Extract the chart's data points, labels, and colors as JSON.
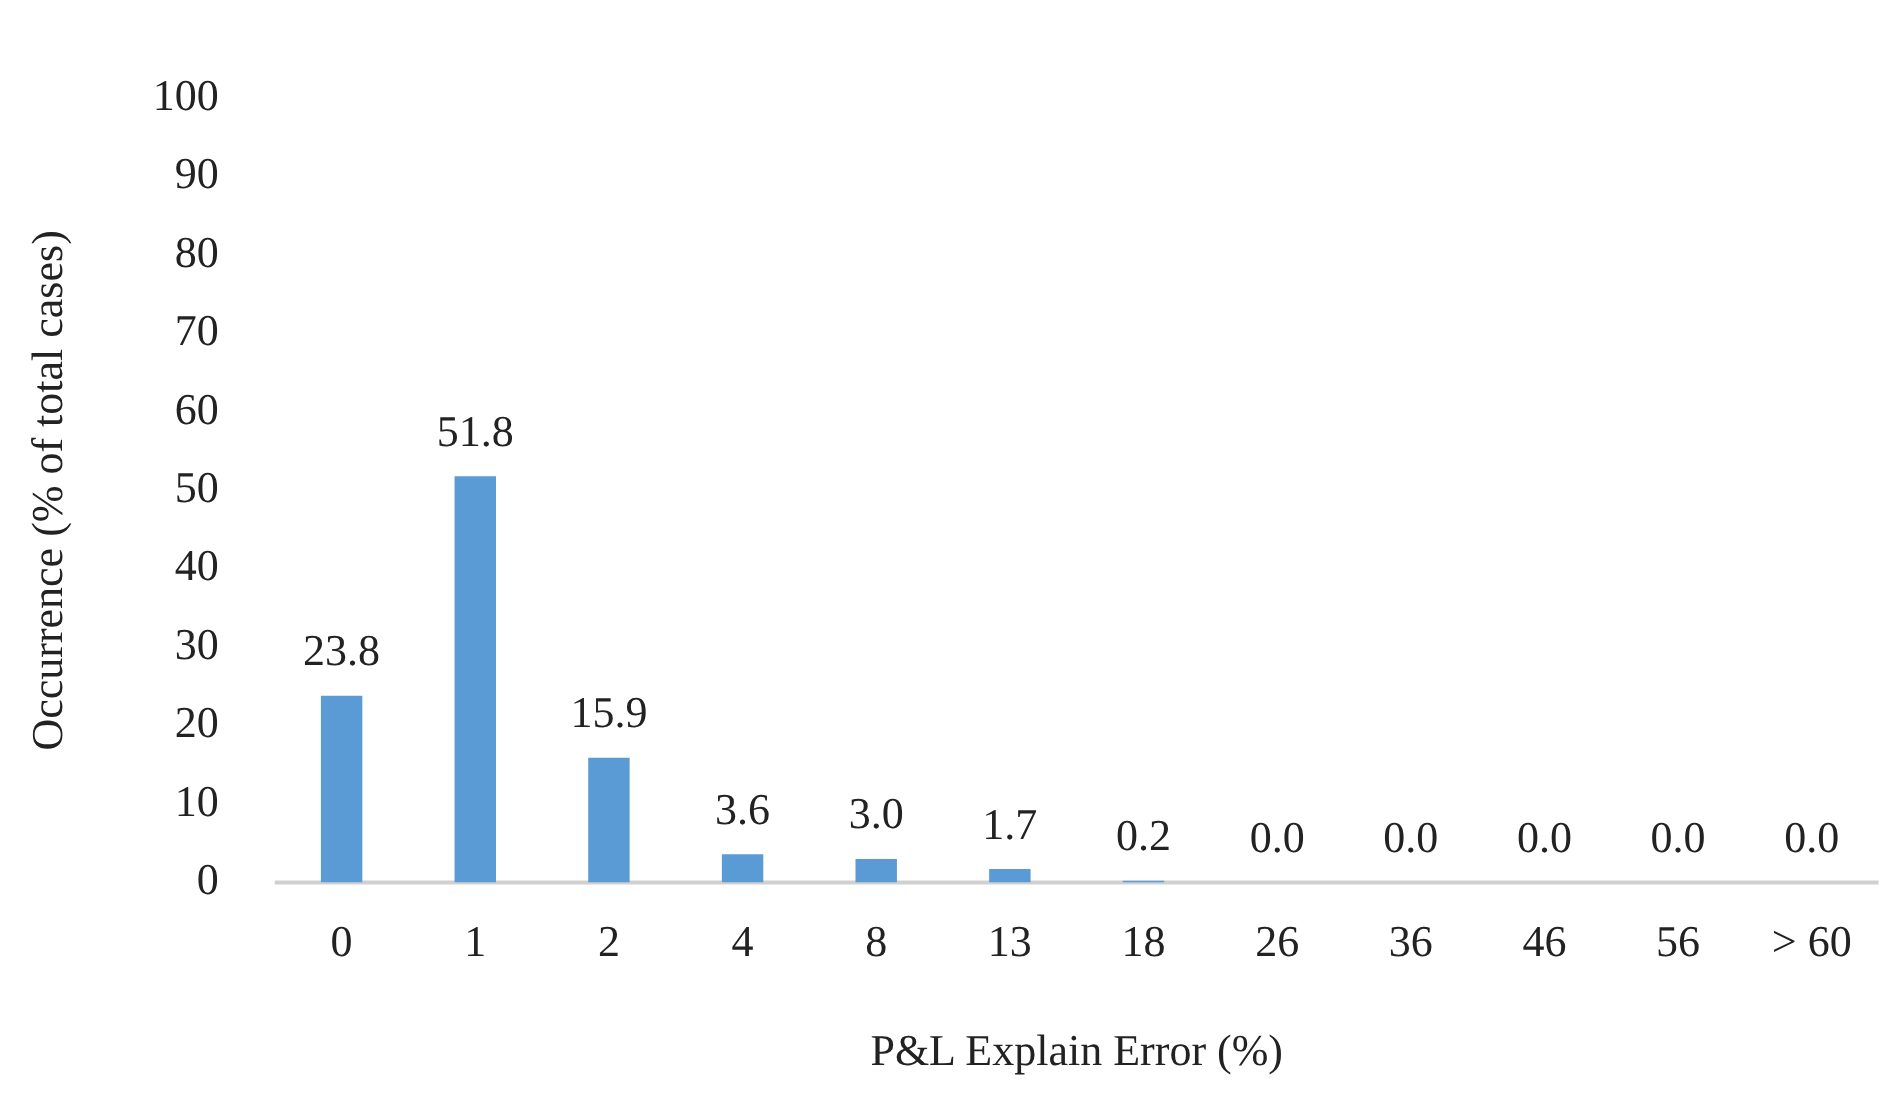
{
  "chart_data": {
    "type": "bar",
    "xlabel": "P&L Explain Error (%)",
    "ylabel": "Occurrence (% of total cases)",
    "categories": [
      "0",
      "1",
      "2",
      "4",
      "8",
      "13",
      "18",
      "26",
      "36",
      "46",
      "56",
      "> 60"
    ],
    "values": [
      23.8,
      51.8,
      15.9,
      3.6,
      3.0,
      1.7,
      0.2,
      0.0,
      0.0,
      0.0,
      0.0,
      0.0
    ],
    "value_labels": [
      "23.8",
      "51.8",
      "15.9",
      "3.6",
      "3.0",
      "1.7",
      "0.2",
      "0.0",
      "0.0",
      "0.0",
      "0.0",
      "0.0"
    ],
    "color": "#5b9bd5",
    "ylim": [
      0,
      100
    ],
    "yticks": [
      0,
      10,
      20,
      30,
      40,
      50,
      60,
      70,
      80,
      90,
      100
    ],
    "grid": false,
    "legend": false
  }
}
